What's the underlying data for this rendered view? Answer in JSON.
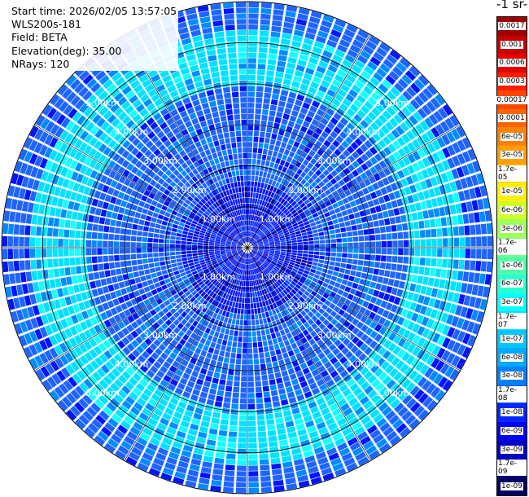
{
  "header": {
    "start_time": "Start time: 2026/02/05 13:57:05",
    "instrument": "WLS200s-181",
    "field": "Field: BETA",
    "elevation": "Elevation(deg): 35.00",
    "nrays": "NRays: 120"
  },
  "colorbar": {
    "units_label": "-1 sr-",
    "ticks": [
      "0.0017",
      "0.001",
      "0.0006",
      "0.0003",
      "0.00017",
      "0.0001",
      "6e-05",
      "3e-05",
      "1.7e-05",
      "1e-05",
      "6e-06",
      "3e-06",
      "1.7e-06",
      "1e-06",
      "6e-07",
      "3e-07",
      "1.7e-07",
      "1e-07",
      "6e-08",
      "3e-08",
      "1.7e-08",
      "1e-08",
      "6e-09",
      "3e-09",
      "1.7e-09",
      "1e-09"
    ],
    "colors": [
      "#a00000",
      "#c80000",
      "#e60000",
      "#ff1e00",
      "#ff4600",
      "#ff6400",
      "#ff8200",
      "#ffa000",
      "#ffc800",
      "#fff000",
      "#d2ff28",
      "#a0ff5a",
      "#78ff82",
      "#50ffaa",
      "#28ffd2",
      "#00ffff",
      "#00e6ff",
      "#00c8ff",
      "#00aaff",
      "#0082ff",
      "#0050ff",
      "#0028ff",
      "#0000ff",
      "#0000cc",
      "#000099",
      "#000066"
    ]
  },
  "chart_data": {
    "type": "heatmap",
    "projection": "polar (PPI scan)",
    "field": "BETA",
    "elevation_deg": 35.0,
    "n_rays": 120,
    "range_rings_km": [
      1,
      2,
      3,
      4,
      5
    ],
    "range_ring_labels": [
      "1.00km",
      "2.00km",
      "3.00km",
      "4.00km",
      "5.00km"
    ],
    "max_range_km": 6.0,
    "azimuth_spokes_deg": [
      0,
      30,
      60,
      90,
      120,
      150,
      180,
      210,
      240,
      270,
      300,
      330
    ],
    "value_range": [
      1e-09,
      0.0017
    ],
    "dominant_values_by_range": [
      {
        "range_km": [
          0,
          1.6
        ],
        "beta": 1e-08
      },
      {
        "range_km": [
          1.6,
          4.0
        ],
        "beta": 3e-08
      },
      {
        "range_km": [
          4.0,
          5.3
        ],
        "beta": 1.7e-07
      },
      {
        "range_km": [
          5.3,
          6.0
        ],
        "beta": 3e-08
      }
    ]
  }
}
